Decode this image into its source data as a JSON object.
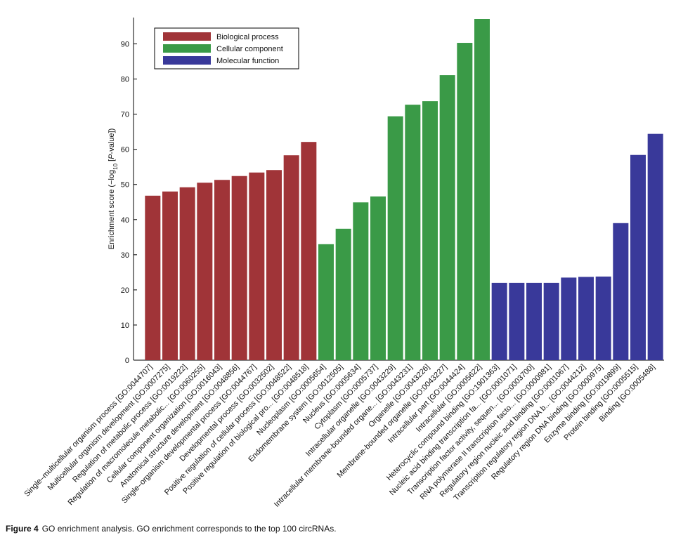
{
  "chart_data": {
    "type": "bar",
    "y_label": [
      "Enrichment score (−log",
      "10",
      " [",
      "P",
      "-value])"
    ],
    "categories": [
      "Single–multicellular organism process [GO:0044707]",
      "Multicellular organism development [GO:0007275]",
      "Regulation of metabolic process [GO:0019222]",
      "Regulation of macromolecule metabolic... [GO:0060255]",
      "Cellular component organization [GO:0016043]",
      "Anatomical structure development [GO:0048856]",
      "Single–organism developmental process [GO:0044767]",
      "Developmental process [GO:0032502]",
      "Positive regulation of cellular process [GO:0048522]",
      "Positive regulation of biological pro... [GO:0048518]",
      "Nucleoplasm [GO:0005654]",
      "Endomembrane system [GO:0012505]",
      "Nucleus [GO:0005634]",
      "Cytoplasm [GO:0005737]",
      "Intracellular organelle [GO:0043229]",
      "Intracellular membrane-bounded organe... [GO:0043231]",
      "Organelle [GO:0043226]",
      "Membrane-bounded organelle [GO:0043227]",
      "Intracellular part [GO:0044424]",
      "Intracellular [GO:0005622]",
      "Heterocyclic compound binding [GO:1901363]",
      "Nucleic acid binding transcription fa... [GO:0001071]",
      "Transcription factor activity, sequen... [GO:0003700]",
      "RNA polymerase II transcription facto... [GO:0000981]",
      "Regulatory region nucleic acid binding [GO:0001067]",
      "Transcription regulatory region DNA b... [GO:0044212]",
      "Regulatory region DNA binding [GO:0000975]",
      "Enzyme binding [GO:0019899]",
      "Protein binding [GO:0005515]",
      "Binding [GO:0005488]"
    ],
    "series": [
      {
        "name": "Biological process",
        "color": "#a03438",
        "values": [
          46.8,
          48,
          49.2,
          50.5,
          51.3,
          52.4,
          53.4,
          54.1,
          58.3,
          62.1,
          null,
          null,
          null,
          null,
          null,
          null,
          null,
          null,
          null,
          null,
          null,
          null,
          null,
          null,
          null,
          null,
          null,
          null,
          null,
          null
        ]
      },
      {
        "name": "Cellular component",
        "color": "#3a9a47",
        "values": [
          null,
          null,
          null,
          null,
          null,
          null,
          null,
          null,
          null,
          null,
          33,
          37.4,
          44.9,
          46.6,
          69.4,
          72.7,
          73.7,
          81.1,
          90.3,
          97.1,
          null,
          null,
          null,
          null,
          null,
          null,
          null,
          null,
          null,
          null
        ]
      },
      {
        "name": "Molecular function",
        "color": "#39399a",
        "values": [
          null,
          null,
          null,
          null,
          null,
          null,
          null,
          null,
          null,
          null,
          null,
          null,
          null,
          null,
          null,
          null,
          null,
          null,
          null,
          null,
          22,
          22,
          22,
          22,
          23.5,
          23.7,
          23.8,
          39,
          58.4,
          64.4
        ]
      }
    ],
    "ylim": [
      0,
      97.5
    ],
    "yticks": [
      0,
      10,
      20,
      30,
      40,
      50,
      60,
      70,
      80,
      90
    ],
    "legend": "upper-left"
  },
  "caption": {
    "label": "Figure 4",
    "text": "GO enrichment analysis.  GO enrichment corresponds to the top 100 circRNAs."
  }
}
